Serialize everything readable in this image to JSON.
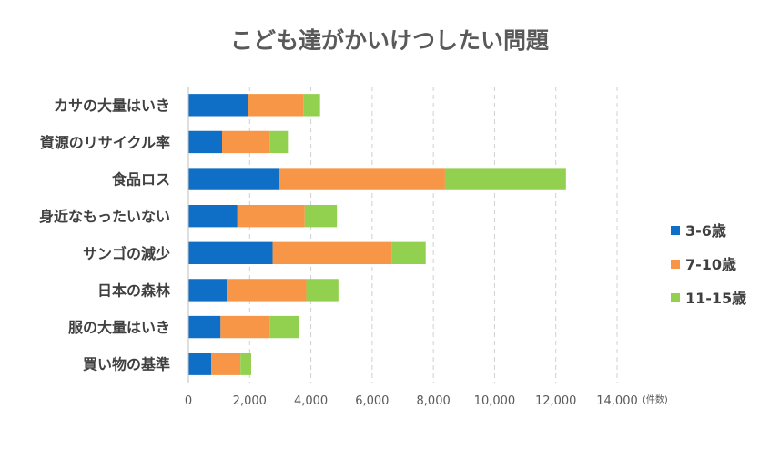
{
  "chart_data": {
    "type": "bar",
    "orientation": "horizontal",
    "stacked": true,
    "title": "こども達がかいけつしたい問題",
    "categories": [
      "カサの大量はいき",
      "資源のリサイクル率",
      "食品ロス",
      "身近なもったいない",
      "サンゴの減少",
      "日本の森林",
      "服の大量はいき",
      "買い物の基準"
    ],
    "series": [
      {
        "name": "3-6歳",
        "color": "#0F6FC6",
        "values": [
          1950,
          1100,
          2980,
          1600,
          2750,
          1250,
          1050,
          750
        ]
      },
      {
        "name": "7-10歳",
        "color": "#F79646",
        "values": [
          1800,
          1550,
          5400,
          2200,
          3900,
          2600,
          1600,
          950
        ]
      },
      {
        "name": "11-15歳",
        "color": "#92D050",
        "values": [
          550,
          600,
          3950,
          1050,
          1100,
          1050,
          950,
          350
        ]
      }
    ],
    "xlim": [
      0,
      14000
    ],
    "x_ticks": [
      "0",
      "2,000",
      "4,000",
      "6,000",
      "8,000",
      "10,000",
      "12,000",
      "14,000"
    ],
    "x_unit": "(件数)",
    "gridlines": "vertical-dashed",
    "legend_position": "right"
  }
}
